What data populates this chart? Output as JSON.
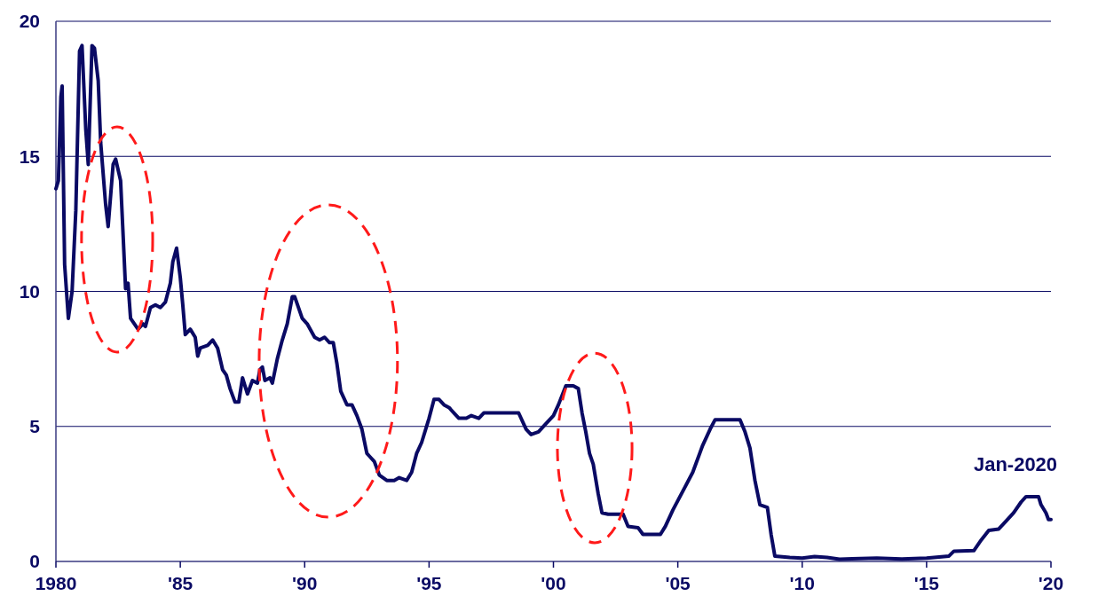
{
  "chart_data": {
    "type": "line",
    "xlim": [
      1980,
      2020
    ],
    "xticks": [
      {
        "value": 1980,
        "label": "1980"
      },
      {
        "value": 1985,
        "label": "'85"
      },
      {
        "value": 1990,
        "label": "'90"
      },
      {
        "value": 1995,
        "label": "'95"
      },
      {
        "value": 2000,
        "label": "'00"
      },
      {
        "value": 2005,
        "label": "'05"
      },
      {
        "value": 2010,
        "label": "'10"
      },
      {
        "value": 2015,
        "label": "'15"
      },
      {
        "value": 2020,
        "label": "'20"
      }
    ],
    "ylim": [
      0,
      20
    ],
    "yticks": [
      0,
      5,
      10,
      15,
      20
    ],
    "grid": "y",
    "marker": "none",
    "line_style": "solid",
    "annotations": [
      {
        "text": "Jan-2020",
        "x": 2020,
        "y": 1.55
      }
    ],
    "series": [
      {
        "color": "#0a0a64",
        "x": [
          1980.0,
          1980.1,
          1980.2,
          1980.25,
          1980.35,
          1980.5,
          1980.65,
          1980.8,
          1980.95,
          1981.05,
          1981.2,
          1981.3,
          1981.45,
          1981.55,
          1981.7,
          1981.8,
          1982.0,
          1982.1,
          1982.3,
          1982.4,
          1982.6,
          1982.8,
          1982.9,
          1983.0,
          1983.3,
          1983.5,
          1983.6,
          1983.8,
          1984.0,
          1984.2,
          1984.4,
          1984.6,
          1984.7,
          1984.85,
          1985.0,
          1985.1,
          1985.2,
          1985.4,
          1985.6,
          1985.7,
          1985.8,
          1986.1,
          1986.3,
          1986.5,
          1986.7,
          1986.85,
          1987.0,
          1987.2,
          1987.35,
          1987.5,
          1987.7,
          1987.9,
          1988.1,
          1988.2,
          1988.3,
          1988.4,
          1988.6,
          1988.7,
          1988.9,
          1989.1,
          1989.3,
          1989.5,
          1989.6,
          1989.9,
          1990.1,
          1990.4,
          1990.6,
          1990.8,
          1991.0,
          1991.15,
          1991.3,
          1991.45,
          1991.7,
          1991.9,
          1992.1,
          1992.3,
          1992.5,
          1992.6,
          1992.8,
          1993.0,
          1993.3,
          1993.6,
          1993.8,
          1994.1,
          1994.3,
          1994.5,
          1994.7,
          1995.0,
          1995.2,
          1995.4,
          1995.6,
          1995.8,
          1996.0,
          1996.2,
          1996.5,
          1996.7,
          1997.0,
          1997.2,
          1997.6,
          1997.9,
          1998.3,
          1998.6,
          1998.9,
          1999.1,
          1999.4,
          1999.7,
          2000.0,
          2000.2,
          2000.5,
          2000.8,
          2001.0,
          2001.15,
          2001.3,
          2001.45,
          2001.6,
          2001.8,
          2001.95,
          2002.2,
          2002.8,
          2003.0,
          2003.4,
          2003.6,
          2004.3,
          2004.5,
          2004.8,
          2005.2,
          2005.6,
          2006.0,
          2006.3,
          2006.5,
          2007.5,
          2007.7,
          2007.9,
          2008.1,
          2008.3,
          2008.6,
          2008.75,
          2008.9,
          2009.5,
          2010.0,
          2010.5,
          2011.0,
          2011.5,
          2012.0,
          2013.0,
          2014.0,
          2015.0,
          2015.9,
          2016.1,
          2016.9,
          2017.2,
          2017.5,
          2017.9,
          2018.2,
          2018.5,
          2018.8,
          2019.0,
          2019.5,
          2019.6,
          2019.8,
          2019.9,
          2020.0
        ],
        "values": [
          13.8,
          14.1,
          17.2,
          17.6,
          11.0,
          9.0,
          10.0,
          13.0,
          18.9,
          19.1,
          16.0,
          14.7,
          19.1,
          19.0,
          17.8,
          15.5,
          13.2,
          12.4,
          14.7,
          14.9,
          14.1,
          10.1,
          10.3,
          9.0,
          8.6,
          8.8,
          8.7,
          9.4,
          9.5,
          9.4,
          9.6,
          10.3,
          11.1,
          11.6,
          10.5,
          9.5,
          8.4,
          8.6,
          8.3,
          7.6,
          7.9,
          8.0,
          8.2,
          7.9,
          7.1,
          6.9,
          6.4,
          5.9,
          5.9,
          6.8,
          6.2,
          6.7,
          6.6,
          7.1,
          7.2,
          6.7,
          6.8,
          6.6,
          7.5,
          8.2,
          8.8,
          9.8,
          9.8,
          9.0,
          8.8,
          8.3,
          8.2,
          8.3,
          8.1,
          8.1,
          7.3,
          6.3,
          5.8,
          5.8,
          5.4,
          4.9,
          4.0,
          3.9,
          3.7,
          3.2,
          3.0,
          3.0,
          3.1,
          3.0,
          3.3,
          4.0,
          4.4,
          5.3,
          6.0,
          6.0,
          5.8,
          5.7,
          5.5,
          5.3,
          5.3,
          5.4,
          5.3,
          5.5,
          5.5,
          5.5,
          5.5,
          5.5,
          4.9,
          4.7,
          4.8,
          5.1,
          5.4,
          5.8,
          6.5,
          6.5,
          6.4,
          5.5,
          4.8,
          4.0,
          3.6,
          2.5,
          1.8,
          1.75,
          1.75,
          1.3,
          1.25,
          1.0,
          1.0,
          1.3,
          1.9,
          2.6,
          3.3,
          4.3,
          4.9,
          5.25,
          5.25,
          4.8,
          4.2,
          3.0,
          2.1,
          2.0,
          1.0,
          0.2,
          0.15,
          0.12,
          0.18,
          0.15,
          0.08,
          0.1,
          0.12,
          0.09,
          0.12,
          0.2,
          0.38,
          0.4,
          0.8,
          1.15,
          1.2,
          1.5,
          1.8,
          2.2,
          2.4,
          2.4,
          2.1,
          1.8,
          1.55,
          1.55
        ]
      }
    ]
  }
}
